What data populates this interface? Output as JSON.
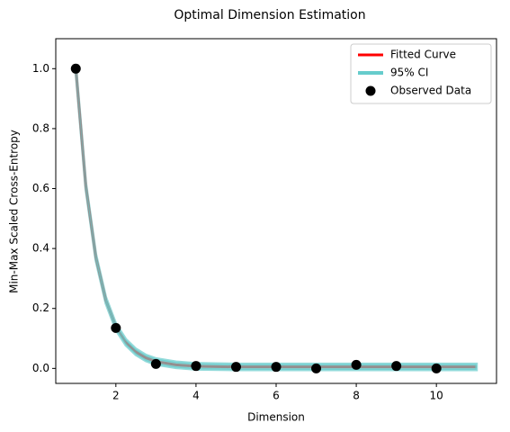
{
  "chart_data": {
    "type": "line",
    "title": "Optimal Dimension Estimation",
    "xlabel": "Dimension",
    "ylabel": "Min-Max Scaled Cross-Entropy",
    "xlim": [
      0.5,
      11.5
    ],
    "ylim": [
      -0.05,
      1.1
    ],
    "xticks": [
      2,
      4,
      6,
      8,
      10
    ],
    "yticks": [
      {
        "value": 0,
        "label": "0.0"
      },
      {
        "value": 0.2,
        "label": "0.2"
      },
      {
        "value": 0.4,
        "label": "0.4"
      },
      {
        "value": 0.6,
        "label": "0.6"
      },
      {
        "value": 0.8,
        "label": "0.8"
      },
      {
        "value": 1,
        "label": "1.0"
      }
    ],
    "legend": "upper right",
    "series": [
      {
        "name": "Fitted Curve",
        "color": "#ff0000",
        "x": [
          1,
          1.25,
          1.5,
          1.75,
          2,
          2.25,
          2.5,
          2.75,
          3,
          3.5,
          4,
          5,
          6,
          7,
          8,
          9,
          10,
          11
        ],
        "values": [
          1.0,
          0.608,
          0.371,
          0.227,
          0.139,
          0.087,
          0.055,
          0.035,
          0.023,
          0.012,
          0.007,
          0.005,
          0.005,
          0.005,
          0.005,
          0.005,
          0.005,
          0.005
        ]
      },
      {
        "name": "95% CI",
        "color": "#66cccc",
        "x": [
          1,
          1.25,
          1.5,
          1.75,
          2,
          2.25,
          2.5,
          2.75,
          3,
          3.5,
          4,
          5,
          6,
          7,
          8,
          9,
          10,
          11
        ],
        "lower": [
          0.99,
          0.598,
          0.361,
          0.217,
          0.129,
          0.077,
          0.045,
          0.025,
          0.013,
          0.002,
          -0.003,
          -0.005,
          -0.005,
          -0.005,
          -0.005,
          -0.005,
          -0.005,
          -0.005
        ],
        "upper": [
          1.01,
          0.618,
          0.381,
          0.237,
          0.149,
          0.097,
          0.065,
          0.045,
          0.033,
          0.022,
          0.017,
          0.015,
          0.015,
          0.015,
          0.015,
          0.015,
          0.015,
          0.015
        ]
      },
      {
        "name": "Observed Data",
        "color": "#000000",
        "x": [
          1,
          2,
          3,
          4,
          5,
          6,
          7,
          8,
          9,
          10
        ],
        "values": [
          1.0,
          0.135,
          0.015,
          0.008,
          0.005,
          0.005,
          0.0,
          0.012,
          0.008,
          0.0
        ]
      }
    ]
  }
}
